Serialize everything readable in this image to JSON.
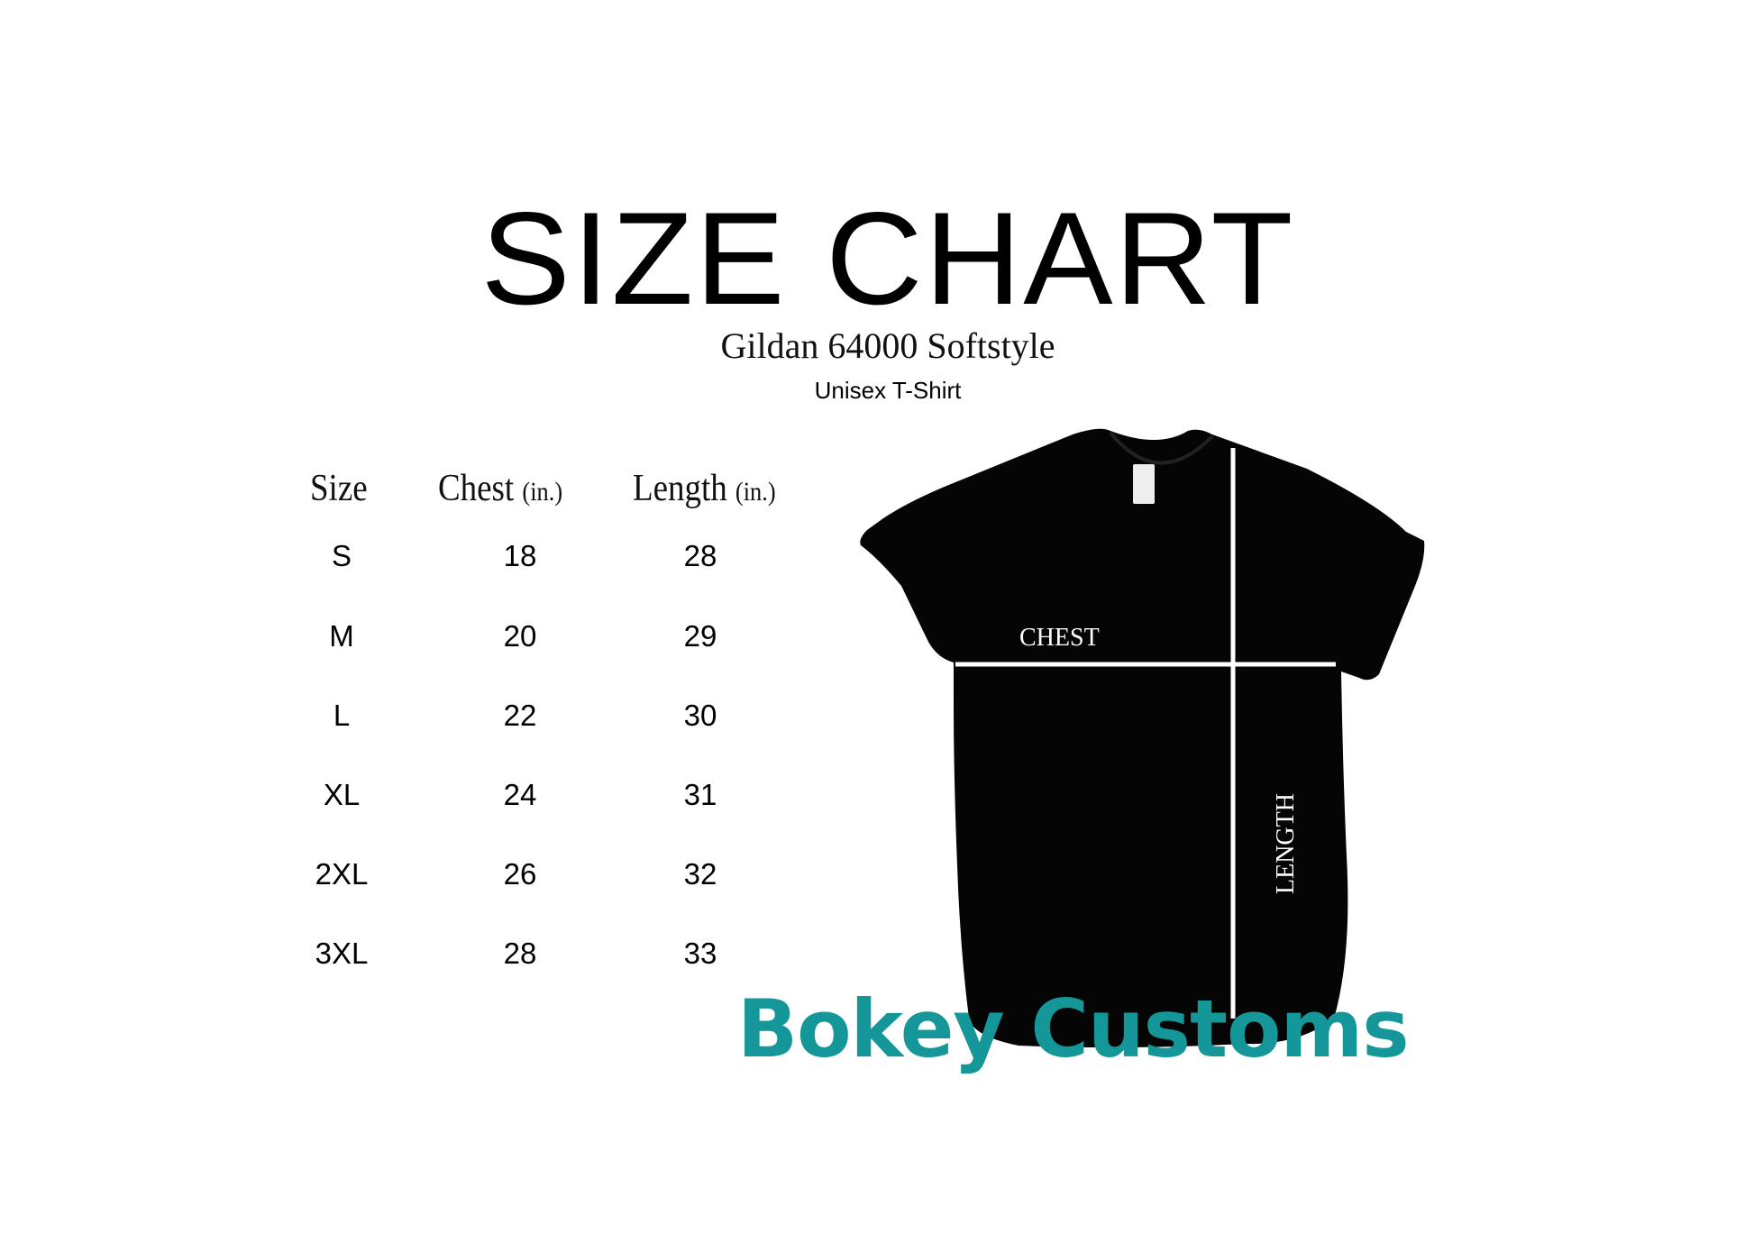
{
  "title": "SIZE CHART",
  "subtitle": "Gildan 64000 Softstyle",
  "product_type": "Unisex T-Shirt",
  "table": {
    "headers": [
      {
        "label": "Size",
        "unit": ""
      },
      {
        "label": "Chest",
        "unit": "(in.)"
      },
      {
        "label": "Length",
        "unit": "(in.)"
      }
    ],
    "rows": [
      {
        "size": "S",
        "chest": "18",
        "length": "28"
      },
      {
        "size": "M",
        "chest": "20",
        "length": "29"
      },
      {
        "size": "L",
        "chest": "22",
        "length": "30"
      },
      {
        "size": "XL",
        "chest": "24",
        "length": "31"
      },
      {
        "size": "2XL",
        "chest": "26",
        "length": "32"
      },
      {
        "size": "3XL",
        "chest": "28",
        "length": "33"
      }
    ]
  },
  "diagram": {
    "chest_label": "CHEST",
    "length_label": "LENGTH",
    "shirt_color": "#050505"
  },
  "brand": {
    "name": "Bokey Customs",
    "color": "#15979a"
  }
}
